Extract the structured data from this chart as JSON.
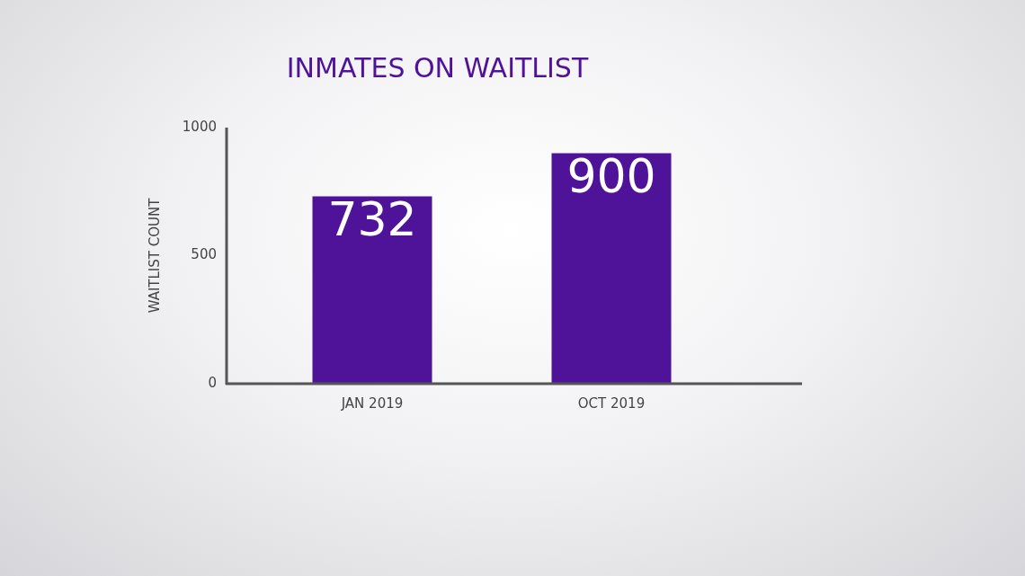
{
  "chart_data": {
    "type": "bar",
    "title": "INMATES ON WAITLIST",
    "ylabel": "WAITLIST COUNT",
    "categories": [
      "JAN 2019",
      "OCT 2019"
    ],
    "values": [
      732,
      900
    ],
    "color": "#4e1399",
    "ylim": [
      0,
      1000
    ],
    "yticks": [
      0,
      500,
      1000
    ],
    "grid": false,
    "legend": false,
    "data_labels": true
  }
}
